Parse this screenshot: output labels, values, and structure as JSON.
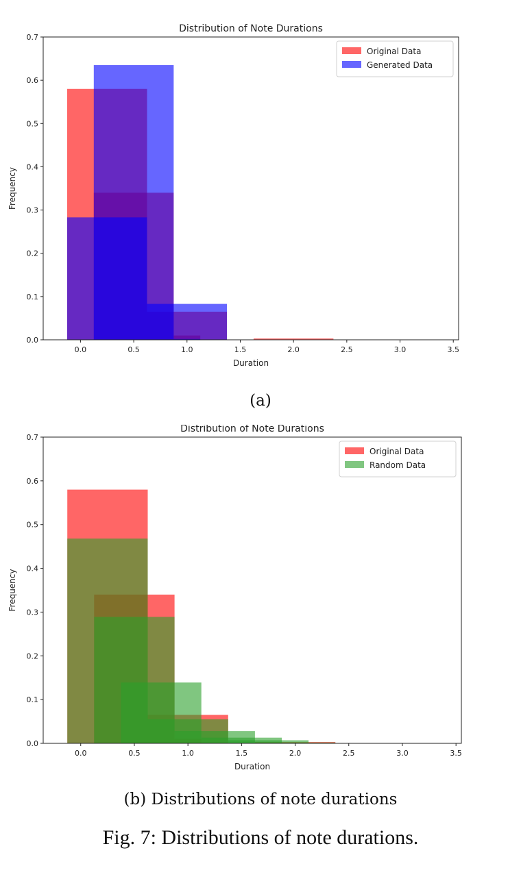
{
  "figure": {
    "caption": "Fig. 7: Distributions of note durations.",
    "subcaption_a": "(a)",
    "subcaption_b": "(b) Distributions of note durations"
  },
  "chart_data": [
    {
      "type": "bar",
      "title": "Distribution of Note Durations",
      "xlabel": "Duration",
      "ylabel": "Frequency",
      "xlim": [
        -0.35,
        3.55
      ],
      "ylim": [
        0,
        0.7
      ],
      "xticks": [
        0.0,
        0.5,
        1.0,
        1.5,
        2.0,
        2.5,
        3.0,
        3.5
      ],
      "xtick_labels": [
        "0.0",
        "0.5",
        "1.0",
        "1.5",
        "2.0",
        "2.5",
        "3.0",
        "3.5"
      ],
      "yticks": [
        0.0,
        0.1,
        0.2,
        0.3,
        0.4,
        0.5,
        0.6,
        0.7
      ],
      "ytick_labels": [
        "0.0",
        "0.1",
        "0.2",
        "0.3",
        "0.4",
        "0.5",
        "0.6",
        "0.7"
      ],
      "legend_position": "top-right",
      "series": [
        {
          "name": "Original Data",
          "color": "#ff0000",
          "bars": [
            {
              "x0": -0.125,
              "x1": 0.625,
              "y": 0.58
            },
            {
              "x0": 0.125,
              "x1": 0.875,
              "y": 0.34
            },
            {
              "x0": 0.625,
              "x1": 1.375,
              "y": 0.065
            },
            {
              "x0": 0.875,
              "x1": 1.125,
              "y": 0.01
            },
            {
              "x0": 1.625,
              "x1": 2.375,
              "y": 0.003
            }
          ]
        },
        {
          "name": "Generated Data",
          "color": "#0000ff",
          "bars": [
            {
              "x0": -0.125,
              "x1": 0.625,
              "y": 0.283
            },
            {
              "x0": 0.125,
              "x1": 0.875,
              "y": 0.635
            },
            {
              "x0": 0.625,
              "x1": 1.375,
              "y": 0.083
            },
            {
              "x0": 0.875,
              "x1": 1.125,
              "y": 0.002
            }
          ]
        }
      ]
    },
    {
      "type": "bar",
      "title": "Distribution of Note Durations",
      "xlabel": "Duration",
      "ylabel": "Frequency",
      "xlim": [
        -0.35,
        3.55
      ],
      "ylim": [
        0,
        0.7
      ],
      "xticks": [
        0.0,
        0.5,
        1.0,
        1.5,
        2.0,
        2.5,
        3.0,
        3.5
      ],
      "xtick_labels": [
        "0.0",
        "0.5",
        "1.0",
        "1.5",
        "2.0",
        "2.5",
        "3.0",
        "3.5"
      ],
      "yticks": [
        0.0,
        0.1,
        0.2,
        0.3,
        0.4,
        0.5,
        0.6,
        0.7
      ],
      "ytick_labels": [
        "0.0",
        "0.1",
        "0.2",
        "0.3",
        "0.4",
        "0.5",
        "0.6",
        "0.7"
      ],
      "legend_position": "top-right",
      "series": [
        {
          "name": "Original Data",
          "color": "#ff0000",
          "bars": [
            {
              "x0": -0.125,
              "x1": 0.625,
              "y": 0.58
            },
            {
              "x0": 0.125,
              "x1": 0.875,
              "y": 0.34
            },
            {
              "x0": 0.625,
              "x1": 1.375,
              "y": 0.065
            },
            {
              "x0": 0.875,
              "x1": 1.125,
              "y": 0.01
            },
            {
              "x0": 1.625,
              "x1": 2.375,
              "y": 0.003
            }
          ]
        },
        {
          "name": "Random Data",
          "color": "#2ca02c",
          "bars": [
            {
              "x0": -0.125,
              "x1": 0.625,
              "y": 0.468
            },
            {
              "x0": 0.125,
              "x1": 0.875,
              "y": 0.289
            },
            {
              "x0": 0.375,
              "x1": 1.125,
              "y": 0.139
            },
            {
              "x0": 0.625,
              "x1": 1.375,
              "y": 0.055
            },
            {
              "x0": 0.875,
              "x1": 1.625,
              "y": 0.028
            },
            {
              "x0": 1.125,
              "x1": 1.875,
              "y": 0.013
            },
            {
              "x0": 1.375,
              "x1": 2.125,
              "y": 0.007
            },
            {
              "x0": 1.625,
              "x1": 2.375,
              "y": 0.002
            }
          ]
        }
      ]
    }
  ]
}
